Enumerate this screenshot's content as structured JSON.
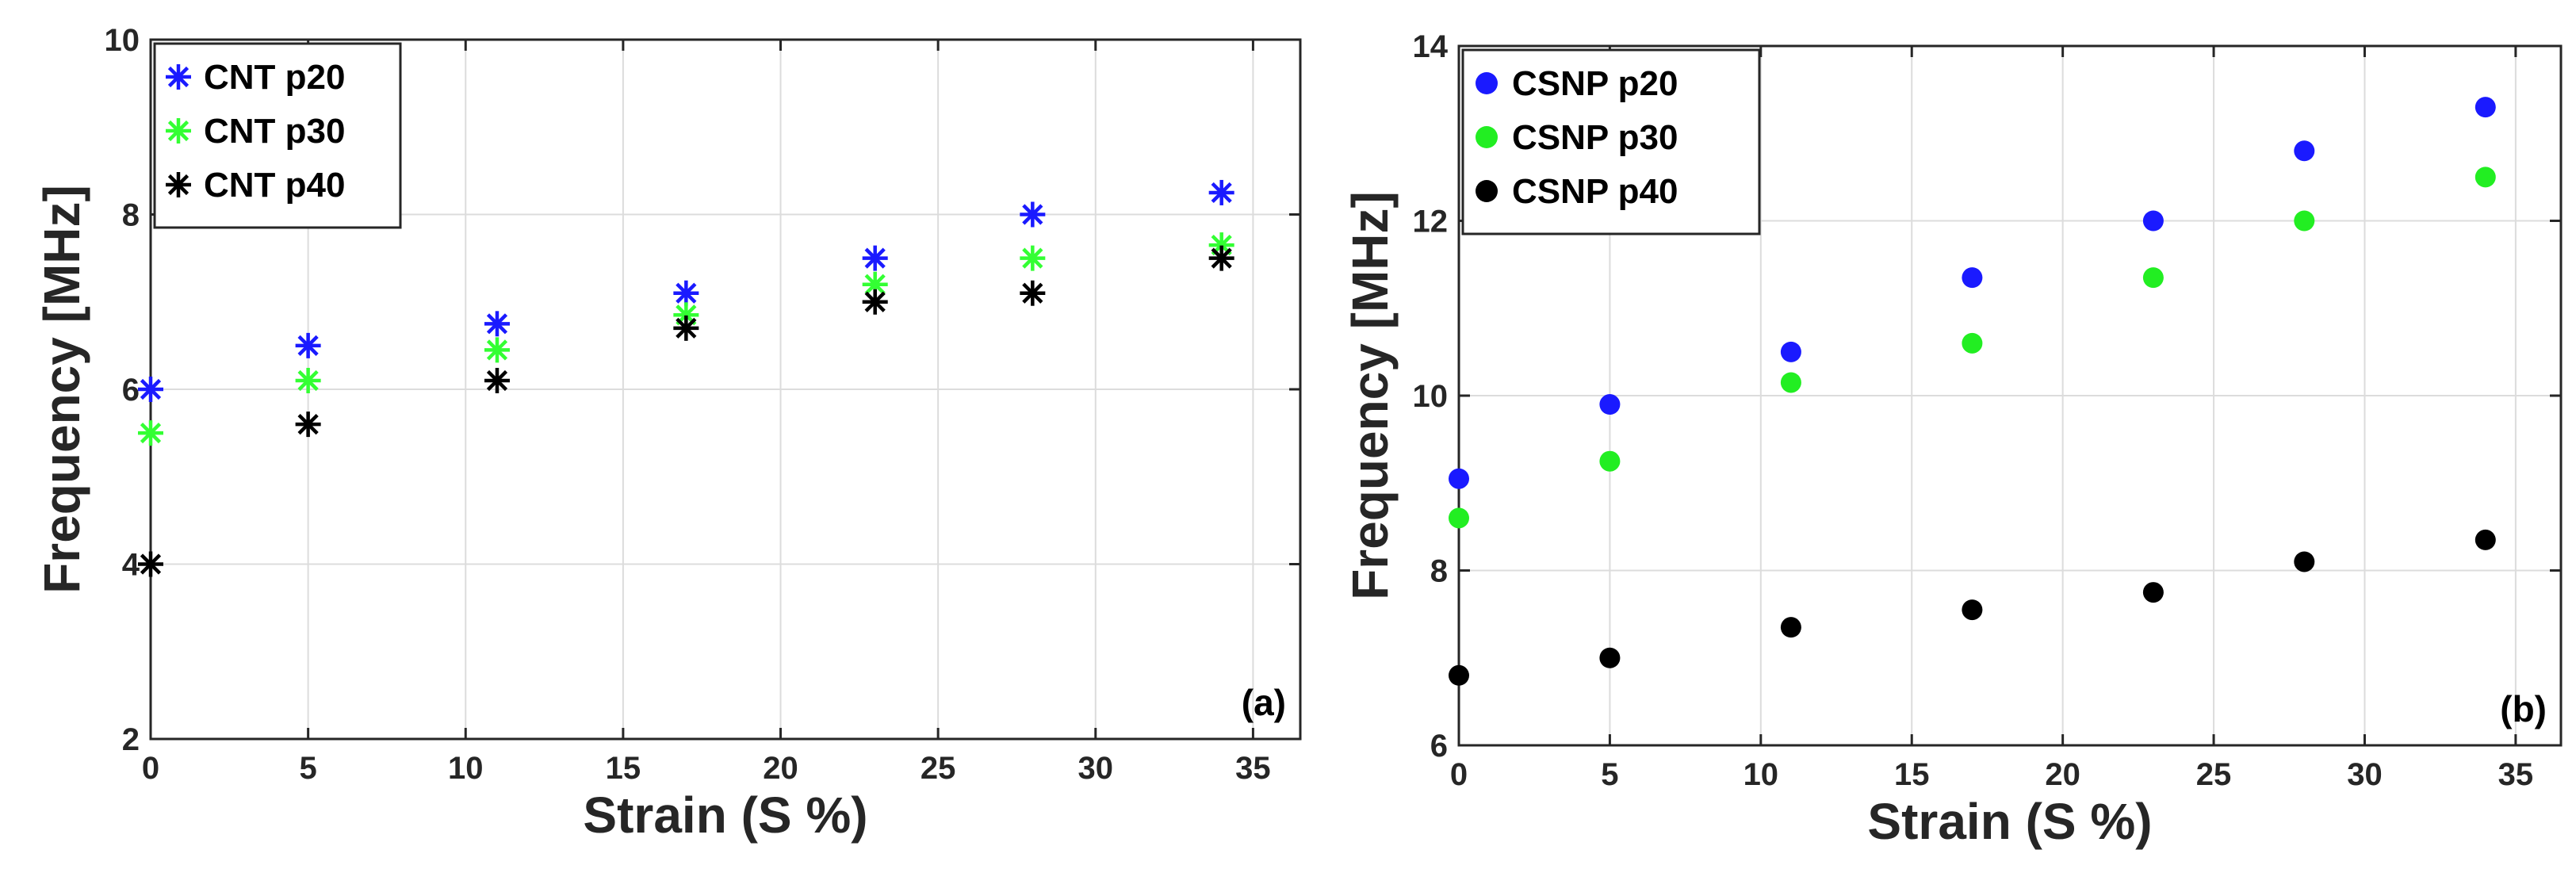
{
  "chart_data": [
    {
      "type": "scatter",
      "marker": "asterisk",
      "xlabel": "Strain (S %)",
      "ylabel": "Frequency [MHz]",
      "xlim": [
        0,
        36.5
      ],
      "ylim": [
        2,
        10
      ],
      "xticks": [
        0,
        5,
        10,
        15,
        20,
        25,
        30,
        35
      ],
      "yticks": [
        2,
        4,
        6,
        8,
        10
      ],
      "grid": true,
      "legend_position": "top-left",
      "panel_label": "(a)",
      "series": [
        {
          "name": "CNT p20",
          "color": "#1a1aff",
          "x": [
            0,
            5,
            11,
            17,
            23,
            28,
            34
          ],
          "y": [
            6.0,
            6.5,
            6.75,
            7.1,
            7.5,
            8.0,
            8.25
          ]
        },
        {
          "name": "CNT p30",
          "color": "#33ff33",
          "x": [
            0,
            5,
            11,
            17,
            23,
            28,
            34
          ],
          "y": [
            5.5,
            6.1,
            6.45,
            6.85,
            7.2,
            7.5,
            7.65
          ]
        },
        {
          "name": "CNT p40",
          "color": "#000000",
          "x": [
            0,
            5,
            11,
            17,
            23,
            28,
            34
          ],
          "y": [
            4.0,
            5.6,
            6.1,
            6.7,
            7.0,
            7.1,
            7.5
          ]
        }
      ]
    },
    {
      "type": "scatter",
      "marker": "dot",
      "xlabel": "Strain (S %)",
      "ylabel": "Frequency [MHz]",
      "xlim": [
        0,
        36.5
      ],
      "ylim": [
        6,
        14
      ],
      "xticks": [
        0,
        5,
        10,
        15,
        20,
        25,
        30,
        35
      ],
      "yticks": [
        6,
        8,
        10,
        12,
        14
      ],
      "grid": true,
      "legend_position": "top-left",
      "panel_label": "(b)",
      "series": [
        {
          "name": "CSNP p20",
          "color": "#1a1aff",
          "x": [
            0,
            5,
            11,
            17,
            23,
            28,
            34
          ],
          "y": [
            9.05,
            9.9,
            10.5,
            11.35,
            12.0,
            12.8,
            13.3
          ]
        },
        {
          "name": "CSNP p30",
          "color": "#22ee22",
          "x": [
            0,
            5,
            11,
            17,
            23,
            28,
            34
          ],
          "y": [
            8.6,
            9.25,
            10.15,
            10.6,
            11.35,
            12.0,
            12.5
          ]
        },
        {
          "name": "CSNP p40",
          "color": "#000000",
          "x": [
            0,
            5,
            11,
            17,
            23,
            28,
            34
          ],
          "y": [
            6.8,
            7.0,
            7.35,
            7.55,
            7.75,
            8.1,
            8.35
          ]
        }
      ]
    }
  ]
}
